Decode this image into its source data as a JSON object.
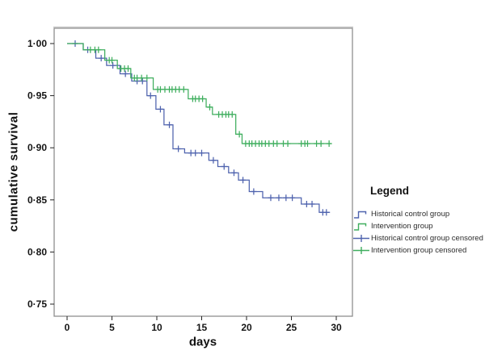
{
  "legend": {
    "title": "Legend",
    "items": [
      {
        "label": "Historical control group",
        "symbol": "step",
        "color": "#4f63ae"
      },
      {
        "label": "Intervention group",
        "symbol": "step",
        "color": "#3fae5e"
      },
      {
        "label": "Historical control group censored",
        "symbol": "censor",
        "color": "#4f63ae"
      },
      {
        "label": "Intervention group censored",
        "symbol": "censor",
        "color": "#3fae5e"
      }
    ]
  },
  "chart_data": {
    "type": "line",
    "subtype": "kaplan-meier-step",
    "title": "",
    "xlabel": "days",
    "ylabel": "cumulative survival",
    "xlim": [
      0,
      30
    ],
    "ylim": [
      0.75,
      1.0
    ],
    "x_ticks": [
      0,
      5,
      10,
      15,
      20,
      25,
      30
    ],
    "x_tick_labels": [
      "0",
      "5",
      "10",
      "15",
      "20",
      "25",
      "30"
    ],
    "y_ticks": [
      1.0,
      0.95,
      0.9,
      0.85,
      0.8,
      0.75
    ],
    "y_tick_labels": [
      "1·00",
      "0·95",
      "0·90",
      "0·85",
      "0·80",
      "0·75"
    ],
    "grid": false,
    "legend_position": "right",
    "frame_color": "#8e8e8e",
    "series": [
      {
        "name": "Historical control group",
        "color": "#4f63ae",
        "steps": [
          [
            0,
            1.0
          ],
          [
            1.8,
            0.994
          ],
          [
            3.2,
            0.986
          ],
          [
            4.4,
            0.979
          ],
          [
            5.9,
            0.971
          ],
          [
            7.2,
            0.964
          ],
          [
            8.9,
            0.95
          ],
          [
            9.9,
            0.937
          ],
          [
            10.8,
            0.922
          ],
          [
            11.8,
            0.899
          ],
          [
            13.1,
            0.895
          ],
          [
            15.8,
            0.888
          ],
          [
            16.8,
            0.882
          ],
          [
            18.0,
            0.876
          ],
          [
            19.1,
            0.869
          ],
          [
            20.3,
            0.858
          ],
          [
            21.8,
            0.852
          ],
          [
            26.1,
            0.846
          ],
          [
            28.1,
            0.838
          ]
        ],
        "end_day": 29.3,
        "censor_days": [
          0.9,
          2.3,
          3.8,
          5.1,
          6.5,
          7.8,
          8.4,
          9.3,
          10.4,
          11.4,
          12.4,
          13.8,
          14.3,
          15.0,
          16.3,
          17.5,
          18.6,
          19.6,
          20.8,
          22.7,
          23.6,
          24.4,
          25.1,
          26.7,
          27.3,
          28.5,
          28.9
        ]
      },
      {
        "name": "Intervention group",
        "color": "#3fae5e",
        "steps": [
          [
            0,
            1.0
          ],
          [
            1.8,
            0.994
          ],
          [
            4.2,
            0.984
          ],
          [
            5.6,
            0.976
          ],
          [
            7.1,
            0.967
          ],
          [
            9.6,
            0.956
          ],
          [
            13.5,
            0.947
          ],
          [
            15.5,
            0.939
          ],
          [
            16.2,
            0.932
          ],
          [
            18.8,
            0.913
          ],
          [
            19.5,
            0.904
          ]
        ],
        "end_day": 29.5,
        "censor_days": [
          2.6,
          3.1,
          3.5,
          4.7,
          5.0,
          6.0,
          6.4,
          6.8,
          7.5,
          7.8,
          8.3,
          8.9,
          10.1,
          10.4,
          10.9,
          11.4,
          11.7,
          12.1,
          12.5,
          13.0,
          14.0,
          14.3,
          14.7,
          15.1,
          15.9,
          16.9,
          17.3,
          17.7,
          18.0,
          18.4,
          19.2,
          19.9,
          20.3,
          20.6,
          21.0,
          21.4,
          21.7,
          22.1,
          22.5,
          23.0,
          23.4,
          24.1,
          24.6,
          26.1,
          26.5,
          26.8,
          27.8,
          28.3,
          29.2
        ]
      }
    ]
  }
}
